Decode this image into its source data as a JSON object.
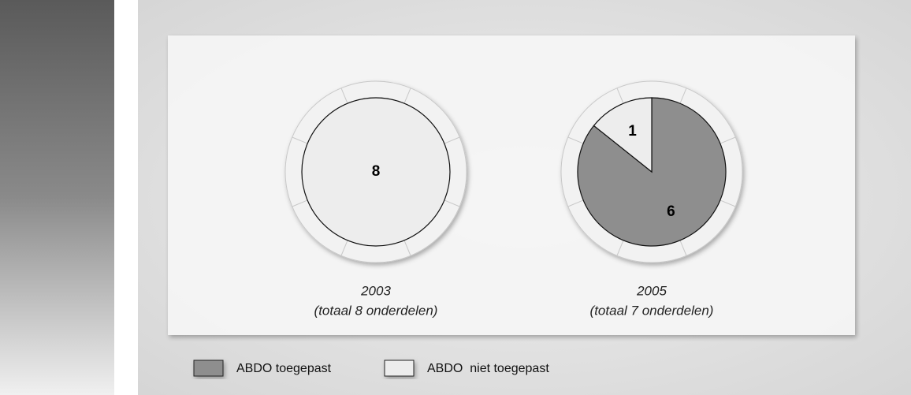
{
  "chart_data": [
    {
      "type": "pie",
      "title": "2003",
      "subtitle": "(totaal 8 onderdelen)",
      "categories": [
        "ABDO toegepast",
        "ABDO  niet toegepast"
      ],
      "values": [
        0,
        8
      ],
      "colors": [
        "#8e8e8e",
        "#ededed"
      ]
    },
    {
      "type": "pie",
      "title": "2005",
      "subtitle": "(totaal 7 onderdelen)",
      "categories": [
        "ABDO toegepast",
        "ABDO  niet toegepast"
      ],
      "values": [
        6,
        1
      ],
      "colors": [
        "#8e8e8e",
        "#ededed"
      ]
    }
  ]
}
